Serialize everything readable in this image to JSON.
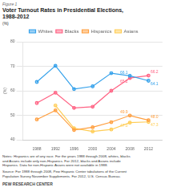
{
  "chart_data": {
    "type": "line",
    "figure_label": "Figure 1",
    "title": "Voter Turnout Rates in Presidential Elections,\n1988-2012",
    "ylabel": "(%)",
    "x": [
      1988,
      1992,
      1996,
      2000,
      2004,
      2008,
      2012
    ],
    "series": [
      {
        "name": "Whites",
        "values": [
          63.6,
          70.2,
          60.7,
          61.8,
          67.2,
          66.1,
          64.1
        ]
      },
      {
        "name": "Blacks",
        "values": [
          55.0,
          59.2,
          53.0,
          53.5,
          60.0,
          65.2,
          66.2
        ]
      },
      {
        "name": "Hispanics",
        "values": [
          48.3,
          52.0,
          44.0,
          45.1,
          47.2,
          49.9,
          48.0
        ]
      },
      {
        "name": "Asians",
        "values": [
          null,
          54.0,
          44.7,
          43.4,
          44.2,
          47.0,
          47.3
        ]
      }
    ],
    "marker": "circle",
    "xlim": [
      1985,
      2015
    ],
    "xticks": [
      1988,
      1992,
      1996,
      2000,
      2004,
      2008,
      2012
    ],
    "ylim": [
      40,
      80
    ],
    "yticks": [
      40,
      50,
      60,
      70,
      80
    ],
    "grid": true,
    "legend": "top",
    "annotations": [
      {
        "text": "66.1",
        "x": 2008,
        "y": 66.1,
        "series": "Whites"
      },
      {
        "text": "65.2",
        "x": 2008,
        "y": 65.2,
        "series": "Blacks"
      },
      {
        "text": "49.9",
        "x": 2008,
        "y": 49.9,
        "series": "Hispanics"
      },
      {
        "text": "47.0",
        "x": 2008,
        "y": 47.0,
        "series": "Asians"
      },
      {
        "text": "66.2",
        "x": 2012,
        "y": 66.2,
        "series": "Blacks"
      },
      {
        "text": "64.1",
        "x": 2012,
        "y": 64.1,
        "series": "Whites"
      },
      {
        "text": "48.0",
        "x": 2012,
        "y": 48.0,
        "series": "Hispanics"
      },
      {
        "text": "47.3",
        "x": 2012,
        "y": 47.3,
        "series": "Asians"
      }
    ],
    "notes": "Notes: Hispanics are of any race. For the years 1988 through 2008, whites, blacks\nand Asians include only non-Hispanics. For 2012, blacks and Asians include\nHispanics. Data for non-Hispanic Asians were not available in 1988.",
    "source": "Source: For 1988 through 2008, Pew Hispanic Center tabulations of the Current\nPopulation Survey November Supplements. For 2012, U.S. Census Bureau.",
    "source_label": "PEW RESEARCH CENTER"
  }
}
